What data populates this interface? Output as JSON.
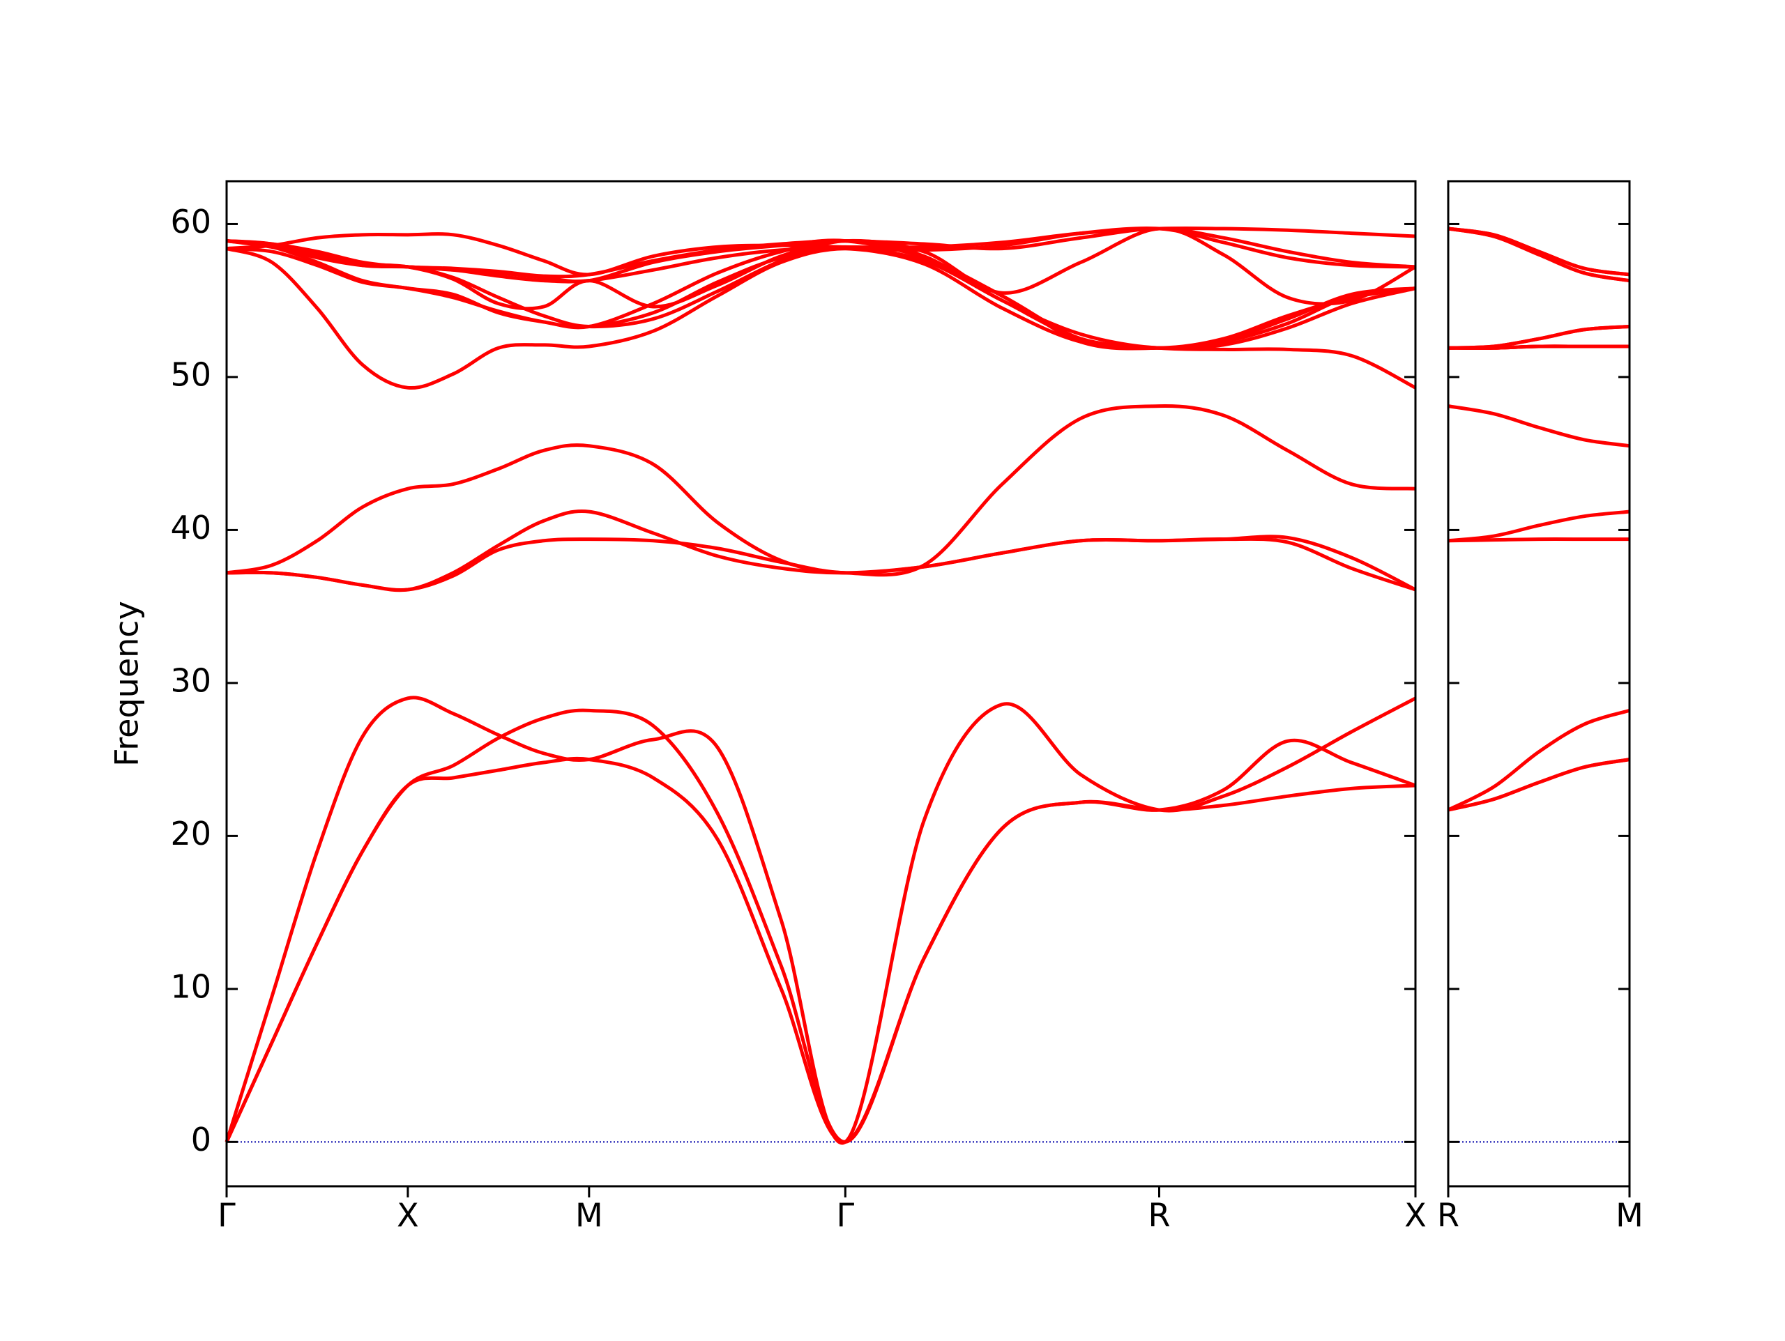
{
  "chart_data": [
    {
      "type": "line",
      "y_label": "Frequency",
      "x": [
        0,
        0.125,
        0.25,
        0.375,
        0.5,
        0.625,
        0.75,
        0.875,
        1.0,
        1.177,
        1.354,
        1.53,
        1.707,
        1.924,
        2.14,
        2.357,
        2.573,
        2.75,
        2.927,
        3.103,
        3.28
      ],
      "xlim": [
        0,
        3.28
      ],
      "xticks": [
        {
          "value": 0,
          "label": "Γ"
        },
        {
          "value": 0.5,
          "label": "X"
        },
        {
          "value": 1.0,
          "label": "M"
        },
        {
          "value": 1.707,
          "label": "Γ"
        },
        {
          "value": 2.573,
          "label": "R"
        },
        {
          "value": 3.28,
          "label": "X"
        }
      ],
      "ylim": [
        -2.9,
        62.8
      ],
      "yticks": [
        0,
        10,
        20,
        30,
        40,
        50,
        60
      ],
      "show_ytick_labels": true,
      "hlines": [
        {
          "y": 0,
          "color": "#0000aa",
          "style": "dotted"
        }
      ],
      "series": [
        {
          "color": "#ff0000",
          "values": [
            0,
            6.5,
            13,
            19,
            23.3,
            23.8,
            24.3,
            24.8,
            25.0,
            23.8,
            19.8,
            10,
            0,
            12,
            20.5,
            22.2,
            21.7,
            22,
            22.6,
            23.1,
            23.3
          ]
        },
        {
          "color": "#ff0000",
          "values": [
            0,
            6.5,
            13,
            19,
            23.3,
            24.6,
            26.4,
            27.7,
            28.2,
            27.2,
            21.5,
            11.5,
            0,
            12,
            20.5,
            22.2,
            21.7,
            23,
            26.2,
            24.8,
            23.3
          ]
        },
        {
          "color": "#ff0000",
          "values": [
            0,
            9.5,
            19,
            26.5,
            29,
            28,
            26.6,
            25.4,
            25,
            26.3,
            25.8,
            14.5,
            0,
            21,
            28.6,
            24,
            21.7,
            22.6,
            24.5,
            26.8,
            29
          ]
        },
        {
          "color": "#ff0000",
          "values": [
            37.2,
            37.7,
            39.3,
            41.5,
            42.7,
            43,
            44,
            45.2,
            45.5,
            44.3,
            40.5,
            38,
            37.2,
            37.7,
            43,
            47.3,
            48.1,
            47.5,
            45.2,
            43,
            42.7
          ]
        },
        {
          "color": "#ff0000",
          "values": [
            37.2,
            37.2,
            36.9,
            36.4,
            36.1,
            37.2,
            39,
            40.6,
            41.2,
            39.8,
            38.3,
            37.5,
            37.2,
            37.6,
            38.5,
            39.3,
            39.3,
            39.4,
            39.5,
            38.2,
            36.1
          ]
        },
        {
          "color": "#ff0000",
          "values": [
            37.2,
            37.2,
            36.9,
            36.4,
            36.1,
            37,
            38.7,
            39.3,
            39.4,
            39.3,
            38.8,
            37.9,
            37.2,
            37.6,
            38.5,
            39.3,
            39.3,
            39.4,
            39.2,
            37.5,
            36.1
          ]
        },
        {
          "color": "#ff0000",
          "values": [
            58.4,
            57.5,
            54.5,
            50.8,
            49.3,
            50.2,
            51.9,
            52.1,
            52.0,
            53.0,
            55.3,
            57.5,
            58.4,
            57.6,
            55.0,
            52.5,
            51.9,
            51.8,
            51.8,
            51.4,
            49.3
          ]
        },
        {
          "color": "#ff0000",
          "values": [
            58.4,
            58.2,
            57.3,
            56.2,
            55.8,
            55.2,
            54.3,
            53.6,
            53.3,
            54.2,
            56.2,
            57.8,
            58.4,
            57.4,
            54.5,
            52.3,
            51.9,
            52.1,
            53.2,
            54.8,
            55.8
          ]
        },
        {
          "color": "#ff0000",
          "values": [
            58.9,
            58.5,
            57.5,
            56.3,
            55.8,
            55.4,
            54.2,
            53.6,
            53.3,
            54.8,
            56.8,
            58.2,
            58.9,
            57.8,
            55.3,
            52.3,
            51.9,
            52.5,
            54.0,
            55.2,
            55.8
          ]
        },
        {
          "color": "#ff0000",
          "values": [
            58.9,
            58.5,
            57.9,
            57.4,
            57.2,
            56.4,
            54.8,
            54.6,
            56.3,
            54.6,
            56.0,
            57.9,
            58.9,
            58.2,
            55.5,
            57.5,
            59.7,
            58.0,
            55.2,
            55.0,
            57.2
          ]
        },
        {
          "color": "#ff0000",
          "values": [
            58.9,
            58.7,
            58.0,
            57.4,
            57.2,
            57.0,
            56.6,
            56.3,
            56.3,
            57.0,
            57.8,
            58.3,
            58.4,
            58.3,
            58.6,
            59.4,
            59.7,
            58.8,
            57.8,
            57.3,
            57.2
          ]
        },
        {
          "color": "#ff0000",
          "values": [
            58.4,
            58.6,
            59.1,
            59.3,
            59.3,
            59.3,
            58.6,
            57.6,
            56.7,
            57.9,
            58.5,
            58.6,
            58.5,
            58.5,
            58.8,
            59.4,
            59.7,
            59.7,
            59.6,
            59.4,
            59.2
          ]
        },
        {
          "color": "#ff0000",
          "values": [
            58.9,
            58.6,
            57.8,
            57.3,
            57.2,
            56.5,
            55.2,
            54.0,
            53.3,
            53.8,
            55.6,
            57.6,
            58.9,
            57.9,
            55.0,
            52.8,
            51.9,
            52.3,
            53.5,
            55.3,
            55.8
          ]
        },
        {
          "color": "#ff0000",
          "values": [
            58.9,
            58.6,
            58.0,
            57.3,
            57.2,
            57.0,
            56.8,
            56.5,
            56.3,
            57.5,
            58.2,
            58.6,
            58.9,
            57.8,
            55.3,
            52.5,
            51.9,
            52.4,
            53.8,
            55.4,
            55.8
          ]
        },
        {
          "color": "#ff0000",
          "values": [
            58.9,
            58.7,
            58.2,
            57.5,
            57.2,
            57.1,
            56.9,
            56.6,
            56.7,
            57.6,
            58.3,
            58.7,
            58.9,
            58.7,
            58.4,
            59.1,
            59.7,
            59.1,
            58.2,
            57.5,
            57.2
          ]
        }
      ]
    },
    {
      "type": "line",
      "x": [
        0,
        0.125,
        0.25,
        0.375,
        0.5
      ],
      "xlim": [
        0,
        0.5
      ],
      "xticks": [
        {
          "value": 0,
          "label": "R"
        },
        {
          "value": 0.5,
          "label": "M"
        }
      ],
      "ylim": [
        -2.9,
        62.8
      ],
      "yticks": [
        0,
        10,
        20,
        30,
        40,
        50,
        60
      ],
      "show_ytick_labels": false,
      "hlines": [
        {
          "y": 0,
          "color": "#0000aa",
          "style": "dotted"
        }
      ],
      "series": [
        {
          "color": "#ff0000",
          "values": [
            21.7,
            22.4,
            23.5,
            24.5,
            25
          ]
        },
        {
          "color": "#ff0000",
          "values": [
            21.7,
            23.2,
            25.5,
            27.3,
            28.2
          ]
        },
        {
          "color": "#ff0000",
          "values": [
            21.7,
            22.4,
            23.5,
            24.5,
            25
          ]
        },
        {
          "color": "#ff0000",
          "values": [
            48.1,
            47.6,
            46.7,
            45.9,
            45.5
          ]
        },
        {
          "color": "#ff0000",
          "values": [
            39.3,
            39.6,
            40.3,
            40.9,
            41.2
          ]
        },
        {
          "color": "#ff0000",
          "values": [
            39.3,
            39.35,
            39.4,
            39.4,
            39.4
          ]
        },
        {
          "color": "#ff0000",
          "values": [
            51.9,
            51.9,
            52.0,
            52.0,
            52.0
          ]
        },
        {
          "color": "#ff0000",
          "values": [
            51.9,
            52.0,
            52.5,
            53.1,
            53.3
          ]
        },
        {
          "color": "#ff0000",
          "values": [
            51.9,
            52.0,
            52.5,
            53.1,
            53.3
          ]
        },
        {
          "color": "#ff0000",
          "values": [
            59.7,
            59.3,
            58.2,
            57.1,
            56.7
          ]
        },
        {
          "color": "#ff0000",
          "values": [
            59.7,
            59.2,
            58.0,
            56.8,
            56.3
          ]
        },
        {
          "color": "#ff0000",
          "values": [
            59.7,
            59.3,
            58.2,
            57.1,
            56.7
          ]
        },
        {
          "color": "#ff0000",
          "values": [
            51.9,
            51.9,
            52.0,
            52.0,
            52.0
          ]
        },
        {
          "color": "#ff0000",
          "values": [
            51.9,
            51.9,
            52.0,
            52.0,
            52.0
          ]
        },
        {
          "color": "#ff0000",
          "values": [
            59.7,
            59.2,
            58.0,
            56.8,
            56.3
          ]
        }
      ]
    }
  ]
}
